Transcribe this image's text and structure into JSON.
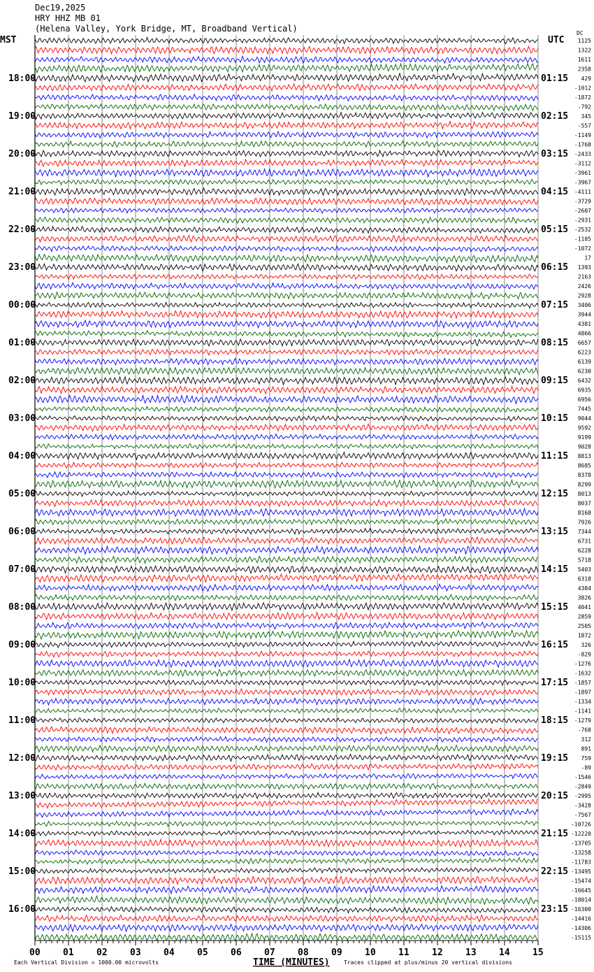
{
  "header": {
    "date": "Dec19,2025",
    "station": "HRY HHZ MB 01",
    "location": "(Helena Valley, York Bridge, MT, Broadband Vertical)"
  },
  "chart_data": {
    "type": "line",
    "title": "HRY HHZ MB 01 helicorder",
    "left_axis_label": "MST",
    "right_axis_label": "UTC",
    "dc_label": "DC",
    "xlabel": "TIME (MINUTES)",
    "x_ticks": [
      "00",
      "01",
      "02",
      "03",
      "04",
      "05",
      "06",
      "07",
      "08",
      "09",
      "10",
      "11",
      "12",
      "13",
      "14",
      "15"
    ],
    "xlim": [
      0,
      15
    ],
    "trace_colors": [
      "#000000",
      "#ff0000",
      "#0000ff",
      "#006400"
    ],
    "mst_labels": [
      "18:00",
      "19:00",
      "20:00",
      "21:00",
      "22:00",
      "23:00",
      "00:00",
      "01:00",
      "02:00",
      "03:00",
      "04:00",
      "05:00",
      "06:00",
      "07:00",
      "08:00",
      "09:00",
      "10:00",
      "11:00",
      "12:00",
      "13:00",
      "14:00",
      "15:00",
      "16:00"
    ],
    "utc_labels": [
      "01:15",
      "02:15",
      "03:15",
      "04:15",
      "05:15",
      "06:15",
      "07:15",
      "08:15",
      "09:15",
      "10:15",
      "11:15",
      "12:15",
      "13:15",
      "14:15",
      "15:15",
      "16:15",
      "17:15",
      "18:15",
      "19:15",
      "20:15",
      "21:15",
      "22:15",
      "23:15"
    ],
    "dc_offsets": [
      1125,
      1322,
      1611,
      2358,
      429,
      -1012,
      -1872,
      -792,
      345,
      -557,
      -1149,
      -1768,
      -2433,
      -3112,
      -3961,
      -3967,
      -4111,
      -3729,
      -2607,
      -2931,
      -2532,
      -1185,
      -1072,
      17,
      1393,
      2163,
      2426,
      2928,
      3406,
      3944,
      4381,
      4866,
      6657,
      6223,
      6139,
      6230,
      6432,
      6935,
      6956,
      7445,
      9044,
      9592,
      9199,
      9028,
      8813,
      8685,
      8378,
      8299,
      8013,
      8037,
      8168,
      7926,
      7344,
      6731,
      6228,
      5718,
      5403,
      6318,
      4384,
      3826,
      4041,
      2859,
      2505,
      1872,
      326,
      -829,
      -1276,
      -1632,
      -1857,
      -1897,
      -1334,
      -1141,
      -1279,
      -768,
      312,
      891,
      759,
      -89,
      -1546,
      -2849,
      -2995,
      -3428,
      -7567,
      -10726,
      -12220,
      -13705,
      -13258,
      -11783,
      -13495,
      -15474,
      -16645,
      -18014,
      -16300,
      -14416,
      -14306,
      -15115
    ],
    "footer_left": "Each Vertical Division = 1000.00 microvolts",
    "footer_right": "Traces clipped at plus/minus 20 vertical divisions"
  }
}
